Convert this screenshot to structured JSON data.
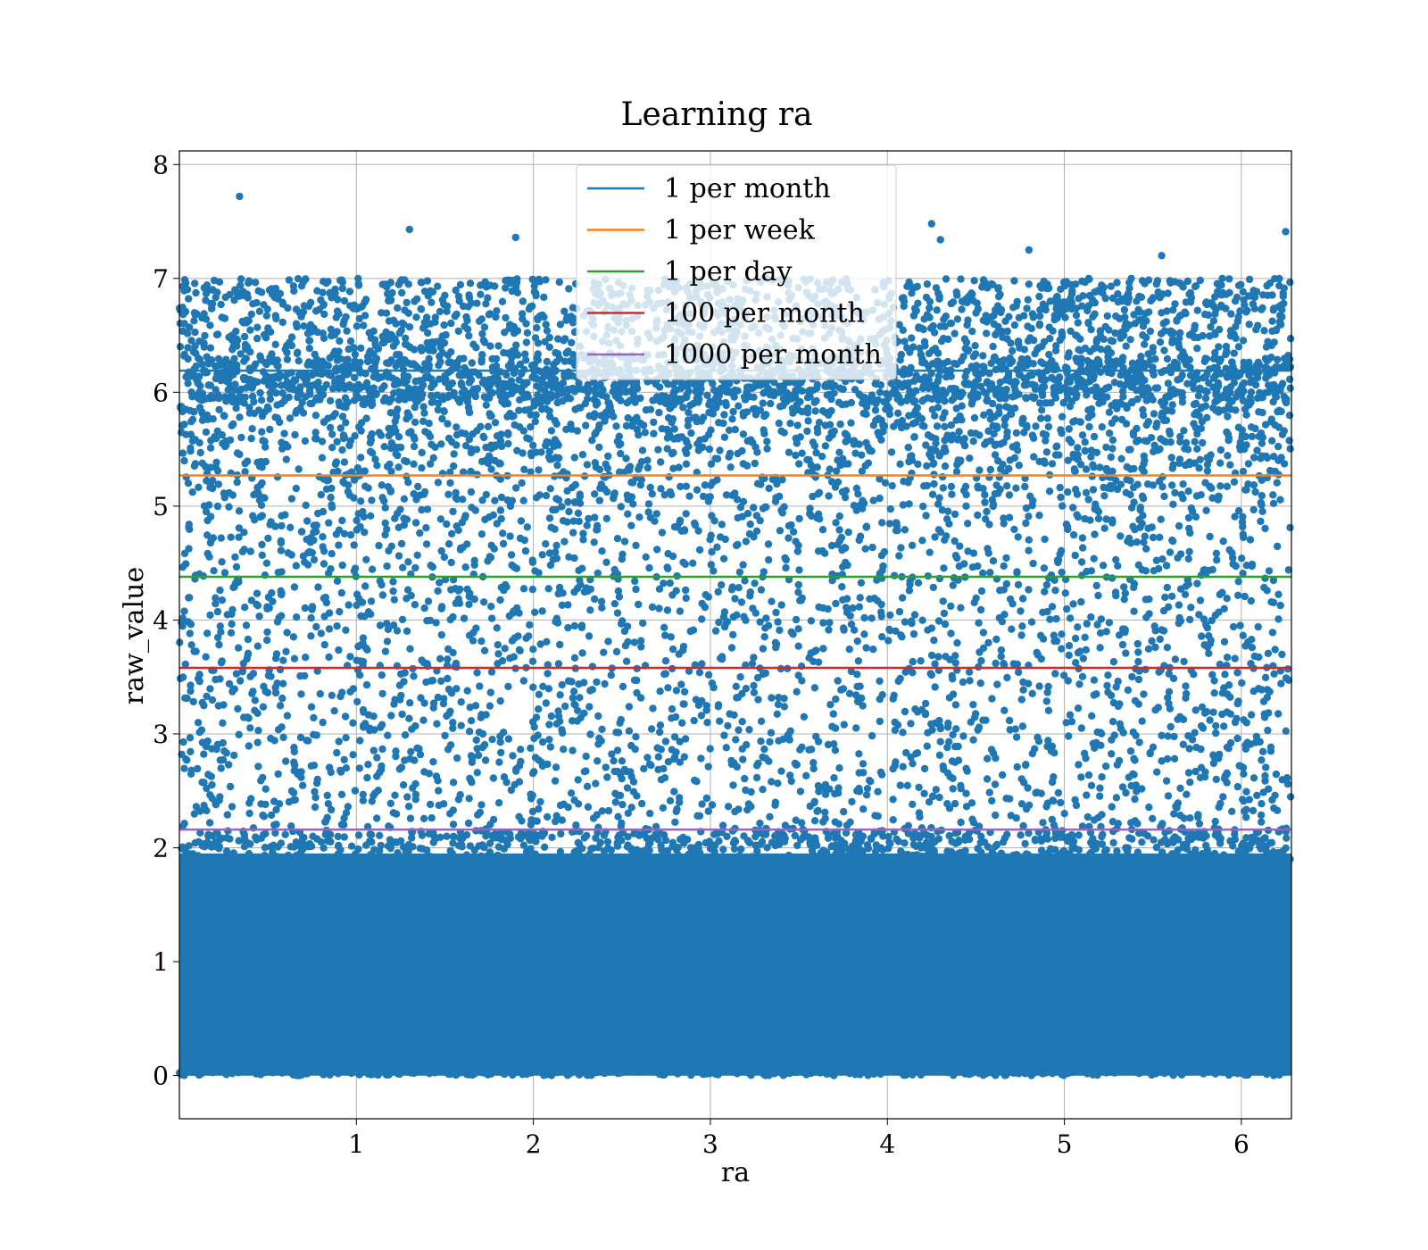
{
  "chart_data": {
    "type": "scatter",
    "title": "Learning ra",
    "xlabel": "ra",
    "ylabel": "raw_value",
    "xlim": [
      0,
      6.283
    ],
    "ylim": [
      -0.38,
      8.12
    ],
    "xticks": [
      "1",
      "2",
      "3",
      "4",
      "5",
      "6"
    ],
    "xtick_values": [
      1,
      2,
      3,
      4,
      5,
      6
    ],
    "yticks": [
      "0",
      "1",
      "2",
      "3",
      "4",
      "5",
      "6",
      "7",
      "8"
    ],
    "ytick_values": [
      0,
      1,
      2,
      3,
      4,
      5,
      6,
      7,
      8
    ],
    "grid": true,
    "legend_position": "upper-center",
    "scatter_color": "#1f77b4",
    "scatter_summary": {
      "x_range": [
        0,
        6.28
      ],
      "dense_band_y": [
        0,
        2.0
      ],
      "sparse_band_y": [
        2.0,
        5.0
      ],
      "upper_band_y": [
        5.0,
        7.0
      ],
      "notable_points": [
        {
          "x": 0.34,
          "y": 7.72
        },
        {
          "x": 1.3,
          "y": 7.43
        },
        {
          "x": 1.9,
          "y": 7.36
        },
        {
          "x": 4.25,
          "y": 7.48
        },
        {
          "x": 4.3,
          "y": 7.34
        },
        {
          "x": 4.8,
          "y": 7.25
        },
        {
          "x": 5.55,
          "y": 7.2
        },
        {
          "x": 6.25,
          "y": 7.41
        }
      ]
    },
    "series": [
      {
        "name": "1 per month",
        "color": "#1f77b4",
        "y": 6.19
      },
      {
        "name": "1 per week",
        "color": "#ff7f0e",
        "y": 5.27
      },
      {
        "name": "1 per day",
        "color": "#2ca02c",
        "y": 4.38
      },
      {
        "name": "100 per month",
        "color": "#d62728",
        "y": 3.58
      },
      {
        "name": "1000 per month",
        "color": "#9467bd",
        "y": 2.16
      }
    ]
  }
}
